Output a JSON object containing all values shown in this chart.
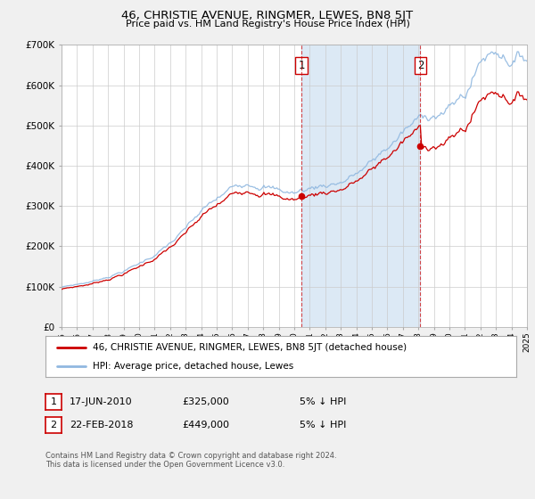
{
  "title": "46, CHRISTIE AVENUE, RINGMER, LEWES, BN8 5JT",
  "subtitle": "Price paid vs. HM Land Registry's House Price Index (HPI)",
  "background_color": "#f0f0f0",
  "plot_bg_color": "#ffffff",
  "shaded_region_color": "#dce9f5",
  "grid_color": "#cccccc",
  "hpi_line_color": "#90b8e0",
  "price_line_color": "#cc0000",
  "sale1_date_num": 2010.46,
  "sale1_price": 325000,
  "sale1_label": "1",
  "sale2_date_num": 2018.13,
  "sale2_price": 449000,
  "sale2_label": "2",
  "ylim": [
    0,
    700000
  ],
  "xlim_start": 1995,
  "xlim_end": 2025,
  "ytick_labels": [
    "£0",
    "£100K",
    "£200K",
    "£300K",
    "£400K",
    "£500K",
    "£600K",
    "£700K"
  ],
  "ytick_values": [
    0,
    100000,
    200000,
    300000,
    400000,
    500000,
    600000,
    700000
  ],
  "xtick_years": [
    1995,
    1996,
    1997,
    1998,
    1999,
    2000,
    2001,
    2002,
    2003,
    2004,
    2005,
    2006,
    2007,
    2008,
    2009,
    2010,
    2011,
    2012,
    2013,
    2014,
    2015,
    2016,
    2017,
    2018,
    2019,
    2020,
    2021,
    2022,
    2023,
    2024,
    2025
  ],
  "legend_line1": "46, CHRISTIE AVENUE, RINGMER, LEWES, BN8 5JT (detached house)",
  "legend_line2": "HPI: Average price, detached house, Lewes",
  "table_row1_num": "1",
  "table_row1_date": "17-JUN-2010",
  "table_row1_price": "£325,000",
  "table_row1_note": "5% ↓ HPI",
  "table_row2_num": "2",
  "table_row2_date": "22-FEB-2018",
  "table_row2_price": "£449,000",
  "table_row2_note": "5% ↓ HPI",
  "footer": "Contains HM Land Registry data © Crown copyright and database right 2024.\nThis data is licensed under the Open Government Licence v3.0."
}
